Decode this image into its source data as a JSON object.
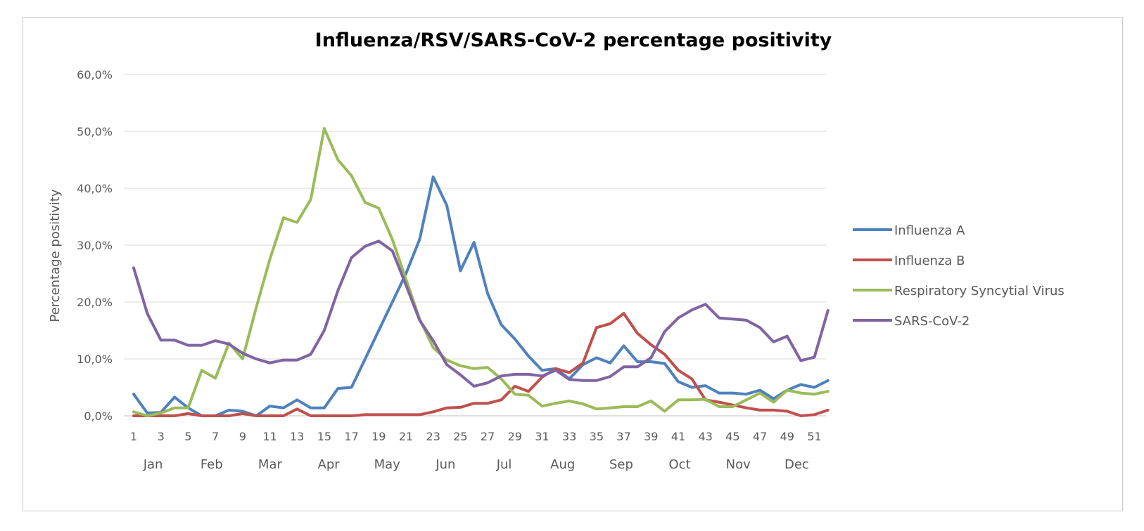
{
  "chart_data": {
    "type": "line",
    "title": "Influenza/RSV/SARS-CoV-2 percentage positivity",
    "xlabel": "",
    "ylabel": "Percentage positivity",
    "ylim": [
      0,
      60
    ],
    "y_ticks": [
      "0,0%",
      "10,0%",
      "20,0%",
      "30,0%",
      "40,0%",
      "50,0%",
      "60,0%"
    ],
    "x": [
      1,
      2,
      3,
      4,
      5,
      6,
      7,
      8,
      9,
      10,
      11,
      12,
      13,
      14,
      15,
      16,
      17,
      18,
      19,
      20,
      21,
      22,
      23,
      24,
      25,
      26,
      27,
      28,
      29,
      30,
      31,
      32,
      33,
      34,
      35,
      36,
      37,
      38,
      39,
      40,
      41,
      42,
      43,
      44,
      45,
      46,
      47,
      48,
      49,
      50,
      51,
      52
    ],
    "x_tick_labels": [
      "1",
      "3",
      "5",
      "7",
      "9",
      "11",
      "13",
      "15",
      "17",
      "19",
      "21",
      "23",
      "25",
      "27",
      "29",
      "31",
      "33",
      "35",
      "37",
      "39",
      "41",
      "43",
      "45",
      "47",
      "49",
      "51"
    ],
    "months": [
      "Jan",
      "Feb",
      "Mar",
      "Apr",
      "May",
      "Jun",
      "Jul",
      "Aug",
      "Sep",
      "Oct",
      "Nov",
      "Dec"
    ],
    "grid": true,
    "legend_position": "right",
    "series": [
      {
        "name": "Influenza A",
        "color": "#4F81BD",
        "values": [
          3.8,
          0.5,
          0.6,
          3.3,
          1.4,
          0.0,
          0.0,
          1.0,
          0.8,
          0.0,
          1.7,
          1.4,
          2.8,
          1.4,
          1.4,
          4.8,
          5.0,
          10.0,
          15.0,
          20.0,
          25.0,
          31.0,
          42.0,
          37.0,
          25.5,
          30.5,
          21.5,
          16.0,
          13.5,
          10.5,
          8.0,
          8.3,
          6.5,
          9.0,
          10.2,
          9.3,
          12.3,
          9.5,
          9.5,
          9.2,
          6.0,
          5.0,
          5.3,
          4.0,
          4.0,
          3.8,
          4.5,
          3.0,
          4.5,
          5.5,
          5.0,
          6.2
        ]
      },
      {
        "name": "Influenza B",
        "color": "#C0504D",
        "values": [
          0.0,
          0.0,
          0.0,
          0.0,
          0.4,
          0.0,
          0.0,
          0.0,
          0.4,
          0.0,
          0.0,
          0.0,
          1.2,
          0.0,
          0.0,
          0.0,
          0.0,
          0.2,
          0.2,
          0.2,
          0.2,
          0.2,
          0.7,
          1.4,
          1.5,
          2.2,
          2.2,
          2.8,
          5.2,
          4.3,
          6.8,
          8.3,
          7.6,
          9.3,
          15.5,
          16.2,
          18.0,
          14.5,
          12.5,
          10.8,
          8.0,
          6.5,
          2.8,
          2.4,
          1.9,
          1.4,
          1.0,
          1.0,
          0.8,
          0.0,
          0.2,
          1.0
        ]
      },
      {
        "name": "Respiratory Syncytial Virus",
        "color": "#9BBB59",
        "values": [
          0.7,
          0.0,
          0.5,
          1.4,
          1.4,
          8.0,
          6.6,
          12.8,
          10.0,
          19.0,
          27.5,
          34.8,
          34.0,
          38.0,
          50.5,
          45.0,
          42.2,
          37.5,
          36.5,
          31.0,
          24.0,
          17.0,
          12.0,
          9.8,
          8.8,
          8.3,
          8.5,
          6.5,
          3.8,
          3.6,
          1.7,
          2.2,
          2.6,
          2.1,
          1.2,
          1.4,
          1.6,
          1.6,
          2.6,
          0.8,
          2.8,
          2.8,
          2.9,
          1.6,
          1.6,
          2.8,
          4.0,
          2.4,
          4.5,
          4.0,
          3.8,
          4.3
        ]
      },
      {
        "name": "SARS-CoV-2",
        "color": "#8064A2",
        "values": [
          26.0,
          18.0,
          13.3,
          13.3,
          12.4,
          12.4,
          13.2,
          12.6,
          11.0,
          10.0,
          9.3,
          9.8,
          9.8,
          10.8,
          15.0,
          22.0,
          27.8,
          29.8,
          30.7,
          29.0,
          23.0,
          16.8,
          13.2,
          9.0,
          7.2,
          5.2,
          5.8,
          7.0,
          7.3,
          7.3,
          7.0,
          8.0,
          6.4,
          6.2,
          6.2,
          6.9,
          8.6,
          8.6,
          10.2,
          14.8,
          17.2,
          18.6,
          19.6,
          17.2,
          17.0,
          16.8,
          15.5,
          13.0,
          14.0,
          9.7,
          10.3,
          18.5
        ]
      }
    ]
  }
}
